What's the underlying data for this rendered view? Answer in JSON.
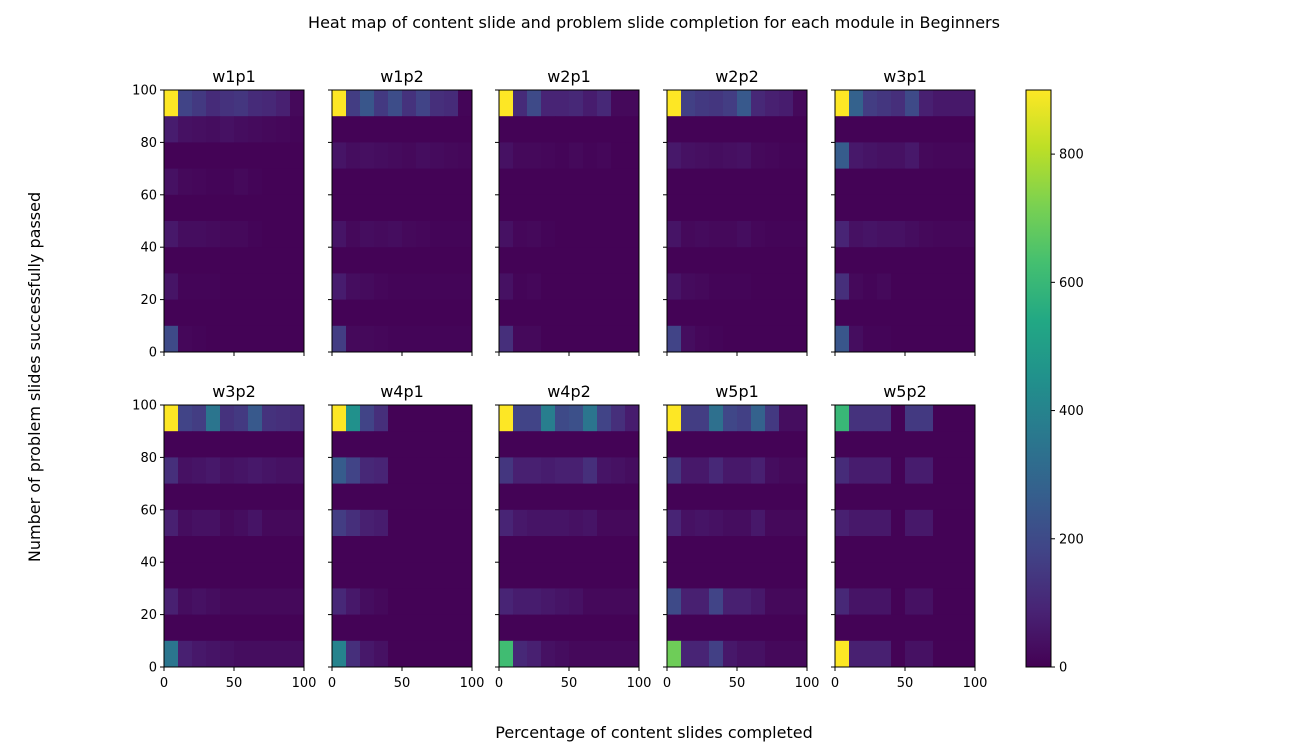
{
  "chart_data": {
    "type": "heatmap",
    "title": "Heat map of content slide and problem slide completion for each module in Beginners",
    "xlabel": "Percentage of content slides completed",
    "ylabel": "Number of problem slides successfully passed",
    "xlim": [
      0,
      100
    ],
    "ylim": [
      0,
      100
    ],
    "xticks": [
      0,
      50,
      100
    ],
    "yticks": [
      0,
      20,
      40,
      60,
      80,
      100
    ],
    "x_bins": [
      0,
      10,
      20,
      30,
      40,
      50,
      60,
      70,
      80,
      90,
      100
    ],
    "y_bins": [
      0,
      10,
      20,
      30,
      40,
      50,
      60,
      70,
      80,
      90,
      100
    ],
    "colormap": "viridis",
    "color_range": [
      0,
      900
    ],
    "colorbar_ticks": [
      0,
      200,
      400,
      600,
      800
    ],
    "grid": false,
    "panels": [
      {
        "name": "w1p1",
        "x_bin_width": 10,
        "values": [
          [
            900,
            180,
            150,
            110,
            130,
            140,
            110,
            100,
            80,
            20
          ],
          [
            70,
            40,
            35,
            30,
            40,
            30,
            25,
            20,
            15,
            10
          ],
          [
            5,
            5,
            5,
            5,
            5,
            5,
            5,
            5,
            5,
            5
          ],
          [
            40,
            20,
            15,
            10,
            10,
            20,
            10,
            5,
            5,
            5
          ],
          [
            5,
            5,
            5,
            5,
            5,
            5,
            5,
            5,
            5,
            5
          ],
          [
            60,
            30,
            30,
            25,
            20,
            20,
            10,
            5,
            5,
            5
          ],
          [
            5,
            5,
            5,
            5,
            5,
            5,
            5,
            5,
            5,
            5
          ],
          [
            50,
            10,
            10,
            10,
            5,
            5,
            5,
            5,
            5,
            5
          ],
          [
            5,
            5,
            5,
            5,
            5,
            5,
            5,
            5,
            5,
            5
          ],
          [
            200,
            15,
            10,
            5,
            5,
            5,
            5,
            5,
            5,
            5
          ]
        ]
      },
      {
        "name": "w1p2",
        "x_bin_width": 10,
        "values": [
          [
            900,
            160,
            240,
            150,
            210,
            130,
            180,
            120,
            110,
            10
          ],
          [
            5,
            5,
            5,
            5,
            5,
            5,
            5,
            5,
            5,
            5
          ],
          [
            50,
            30,
            35,
            30,
            25,
            20,
            30,
            25,
            20,
            15
          ],
          [
            5,
            5,
            5,
            5,
            5,
            5,
            5,
            5,
            5,
            5
          ],
          [
            5,
            5,
            5,
            5,
            5,
            5,
            5,
            5,
            5,
            5
          ],
          [
            50,
            20,
            30,
            25,
            30,
            20,
            15,
            10,
            10,
            10
          ],
          [
            5,
            5,
            5,
            5,
            5,
            5,
            5,
            5,
            5,
            5
          ],
          [
            70,
            30,
            25,
            15,
            10,
            10,
            10,
            10,
            10,
            10
          ],
          [
            5,
            5,
            5,
            5,
            5,
            5,
            5,
            5,
            5,
            5
          ],
          [
            160,
            20,
            20,
            15,
            10,
            10,
            10,
            10,
            10,
            10
          ]
        ]
      },
      {
        "name": "w2p1",
        "x_bin_width": 10,
        "values": [
          [
            900,
            110,
            200,
            90,
            90,
            100,
            70,
            100,
            20,
            20
          ],
          [
            5,
            5,
            5,
            5,
            5,
            5,
            5,
            5,
            5,
            5
          ],
          [
            40,
            20,
            20,
            15,
            10,
            20,
            10,
            15,
            5,
            5
          ],
          [
            5,
            5,
            5,
            5,
            5,
            5,
            5,
            5,
            5,
            5
          ],
          [
            5,
            5,
            5,
            5,
            5,
            5,
            5,
            5,
            5,
            5
          ],
          [
            40,
            15,
            20,
            10,
            5,
            5,
            5,
            5,
            5,
            5
          ],
          [
            5,
            5,
            5,
            5,
            5,
            5,
            5,
            5,
            5,
            5
          ],
          [
            40,
            10,
            15,
            5,
            5,
            5,
            5,
            5,
            5,
            5
          ],
          [
            5,
            5,
            5,
            5,
            5,
            5,
            5,
            5,
            5,
            5
          ],
          [
            120,
            20,
            20,
            5,
            5,
            5,
            5,
            5,
            5,
            5
          ]
        ]
      },
      {
        "name": "w2p2",
        "x_bin_width": 10,
        "values": [
          [
            900,
            170,
            150,
            140,
            160,
            250,
            100,
            80,
            70,
            20
          ],
          [
            5,
            5,
            5,
            5,
            5,
            5,
            5,
            5,
            5,
            5
          ],
          [
            60,
            40,
            35,
            30,
            35,
            40,
            20,
            15,
            10,
            10
          ],
          [
            5,
            5,
            5,
            5,
            5,
            5,
            5,
            5,
            5,
            5
          ],
          [
            5,
            5,
            5,
            5,
            5,
            5,
            5,
            5,
            5,
            5
          ],
          [
            50,
            20,
            25,
            20,
            20,
            30,
            15,
            10,
            10,
            10
          ],
          [
            5,
            5,
            5,
            5,
            5,
            5,
            5,
            5,
            5,
            5
          ],
          [
            50,
            25,
            20,
            10,
            10,
            10,
            5,
            5,
            5,
            5
          ],
          [
            5,
            5,
            5,
            5,
            5,
            5,
            5,
            5,
            5,
            5
          ],
          [
            180,
            30,
            15,
            10,
            5,
            5,
            5,
            5,
            5,
            5
          ]
        ]
      },
      {
        "name": "w3p1",
        "x_bin_width": 10,
        "values": [
          [
            900,
            280,
            160,
            140,
            120,
            200,
            80,
            60,
            60,
            60
          ],
          [
            5,
            5,
            5,
            5,
            5,
            5,
            5,
            5,
            5,
            5
          ],
          [
            260,
            60,
            50,
            40,
            40,
            60,
            20,
            15,
            15,
            15
          ],
          [
            5,
            5,
            5,
            5,
            5,
            5,
            5,
            5,
            5,
            5
          ],
          [
            5,
            5,
            5,
            5,
            5,
            5,
            5,
            5,
            5,
            5
          ],
          [
            90,
            40,
            50,
            40,
            40,
            30,
            20,
            15,
            15,
            15
          ],
          [
            5,
            5,
            5,
            5,
            5,
            5,
            5,
            5,
            5,
            5
          ],
          [
            120,
            20,
            10,
            20,
            5,
            5,
            5,
            5,
            5,
            5
          ],
          [
            5,
            5,
            5,
            5,
            5,
            5,
            5,
            5,
            5,
            5
          ],
          [
            240,
            30,
            10,
            10,
            5,
            5,
            5,
            5,
            5,
            5
          ]
        ]
      },
      {
        "name": "w3p2",
        "x_bin_width": 10,
        "values": [
          [
            900,
            180,
            160,
            350,
            130,
            150,
            250,
            130,
            120,
            110
          ],
          [
            5,
            5,
            5,
            5,
            5,
            5,
            5,
            5,
            5,
            5
          ],
          [
            120,
            40,
            50,
            60,
            40,
            50,
            60,
            50,
            40,
            40
          ],
          [
            5,
            5,
            5,
            5,
            5,
            5,
            5,
            5,
            5,
            5
          ],
          [
            80,
            30,
            40,
            40,
            20,
            30,
            50,
            20,
            20,
            20
          ],
          [
            5,
            5,
            5,
            5,
            5,
            5,
            5,
            5,
            5,
            5
          ],
          [
            5,
            5,
            5,
            5,
            5,
            5,
            5,
            5,
            5,
            5
          ],
          [
            80,
            30,
            40,
            30,
            20,
            20,
            20,
            20,
            20,
            20
          ],
          [
            5,
            5,
            5,
            5,
            5,
            5,
            5,
            5,
            5,
            5
          ],
          [
            350,
            80,
            60,
            50,
            40,
            30,
            30,
            30,
            30,
            30
          ]
        ]
      },
      {
        "name": "w4p1",
        "x_bin_width": 10,
        "values": [
          [
            900,
            450,
            180,
            120,
            5,
            5,
            5,
            5,
            5,
            5
          ],
          [
            5,
            5,
            5,
            5,
            5,
            5,
            5,
            5,
            5,
            5
          ],
          [
            260,
            180,
            100,
            90,
            5,
            5,
            5,
            5,
            5,
            5
          ],
          [
            5,
            5,
            5,
            5,
            5,
            5,
            5,
            5,
            5,
            5
          ],
          [
            160,
            120,
            80,
            70,
            5,
            5,
            5,
            5,
            5,
            5
          ],
          [
            5,
            5,
            5,
            5,
            5,
            5,
            5,
            5,
            5,
            5
          ],
          [
            5,
            5,
            5,
            5,
            5,
            5,
            5,
            5,
            5,
            5
          ],
          [
            100,
            60,
            30,
            20,
            5,
            5,
            5,
            5,
            5,
            5
          ],
          [
            5,
            5,
            5,
            5,
            5,
            5,
            5,
            5,
            5,
            5
          ],
          [
            400,
            120,
            60,
            40,
            5,
            5,
            5,
            5,
            5,
            5
          ]
        ]
      },
      {
        "name": "w4p2",
        "x_bin_width": 10,
        "values": [
          [
            900,
            180,
            180,
            380,
            200,
            220,
            350,
            180,
            120,
            70
          ],
          [
            5,
            5,
            5,
            5,
            5,
            5,
            5,
            5,
            5,
            5
          ],
          [
            140,
            80,
            80,
            70,
            80,
            80,
            120,
            50,
            40,
            30
          ],
          [
            5,
            5,
            5,
            5,
            5,
            5,
            5,
            5,
            5,
            5
          ],
          [
            90,
            60,
            50,
            50,
            50,
            40,
            50,
            20,
            20,
            20
          ],
          [
            5,
            5,
            5,
            5,
            5,
            5,
            5,
            5,
            5,
            5
          ],
          [
            5,
            5,
            5,
            5,
            5,
            5,
            5,
            5,
            5,
            5
          ],
          [
            90,
            70,
            70,
            60,
            50,
            40,
            20,
            20,
            20,
            20
          ],
          [
            5,
            5,
            5,
            5,
            5,
            5,
            5,
            5,
            5,
            5
          ],
          [
            620,
            100,
            80,
            40,
            30,
            20,
            20,
            20,
            20,
            20
          ]
        ]
      },
      {
        "name": "w5p1",
        "x_bin_width": 10,
        "values": [
          [
            900,
            160,
            160,
            330,
            190,
            170,
            280,
            150,
            30,
            30
          ],
          [
            5,
            5,
            5,
            5,
            5,
            5,
            5,
            5,
            5,
            5
          ],
          [
            140,
            60,
            60,
            100,
            60,
            60,
            80,
            30,
            20,
            20
          ],
          [
            5,
            5,
            5,
            5,
            5,
            5,
            5,
            5,
            5,
            5
          ],
          [
            90,
            40,
            50,
            40,
            30,
            30,
            60,
            20,
            20,
            20
          ],
          [
            5,
            5,
            5,
            5,
            5,
            5,
            5,
            5,
            5,
            5
          ],
          [
            5,
            5,
            5,
            5,
            5,
            5,
            5,
            5,
            5,
            5
          ],
          [
            200,
            80,
            80,
            180,
            80,
            80,
            60,
            20,
            20,
            20
          ],
          [
            5,
            5,
            5,
            5,
            5,
            5,
            5,
            5,
            5,
            5
          ],
          [
            700,
            90,
            90,
            170,
            60,
            40,
            40,
            20,
            20,
            20
          ]
        ]
      },
      {
        "name": "w5p2",
        "x_bin_width": 10,
        "values": [
          [
            600,
            130,
            130,
            130,
            5,
            150,
            150,
            5,
            5,
            5
          ],
          [
            5,
            5,
            5,
            5,
            5,
            5,
            5,
            5,
            5,
            5
          ],
          [
            110,
            70,
            70,
            70,
            5,
            70,
            70,
            5,
            5,
            5
          ],
          [
            5,
            5,
            5,
            5,
            5,
            5,
            5,
            5,
            5,
            5
          ],
          [
            80,
            60,
            60,
            60,
            5,
            60,
            60,
            5,
            5,
            5
          ],
          [
            5,
            5,
            5,
            5,
            5,
            5,
            5,
            5,
            5,
            5
          ],
          [
            5,
            5,
            5,
            5,
            5,
            5,
            5,
            5,
            5,
            5
          ],
          [
            100,
            50,
            50,
            50,
            5,
            40,
            40,
            5,
            5,
            5
          ],
          [
            5,
            5,
            5,
            5,
            5,
            5,
            5,
            5,
            5,
            5
          ],
          [
            900,
            80,
            80,
            80,
            5,
            40,
            40,
            5,
            5,
            5
          ]
        ]
      }
    ]
  }
}
